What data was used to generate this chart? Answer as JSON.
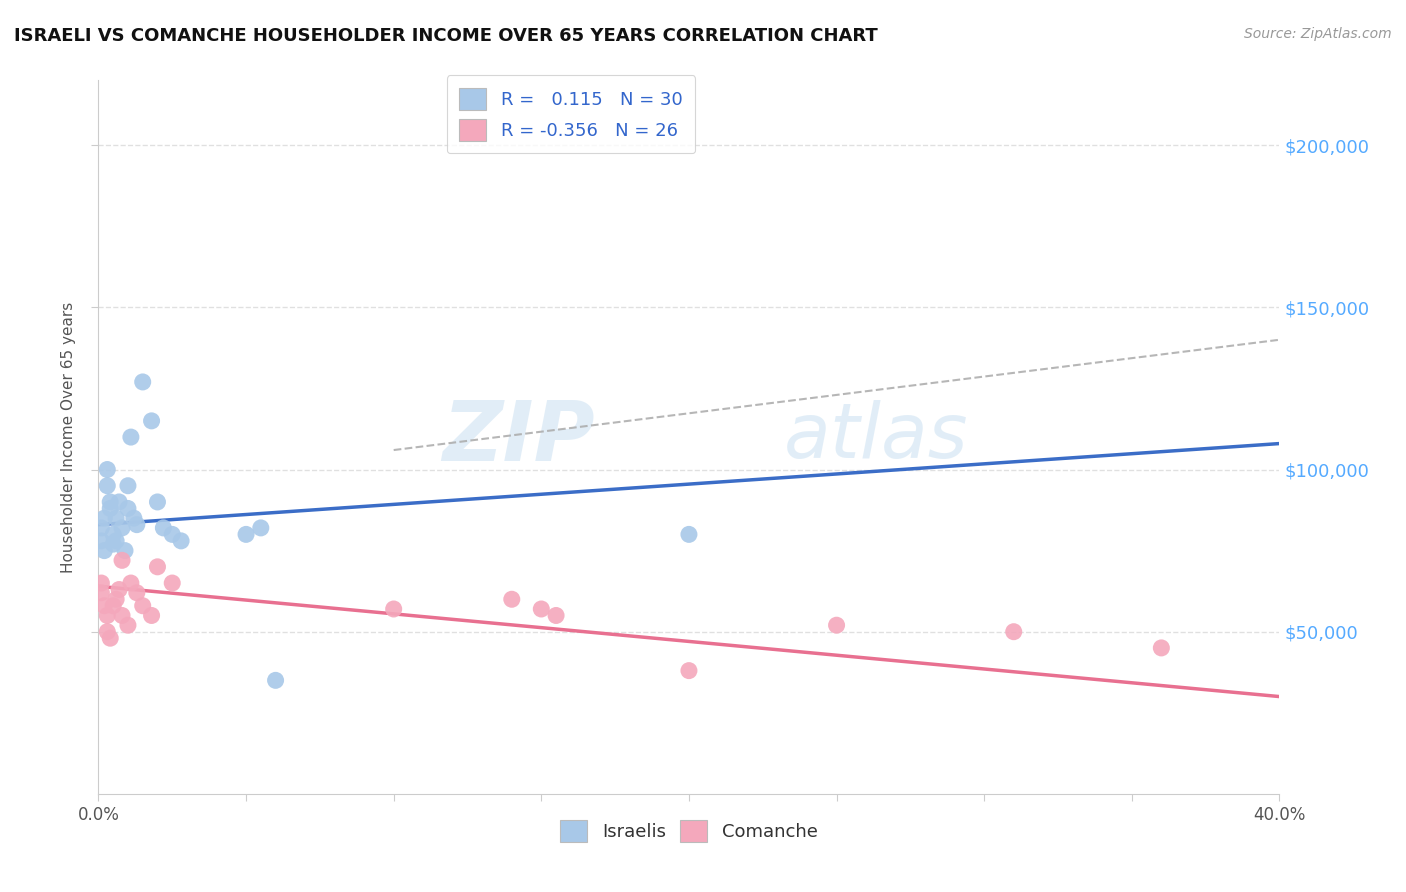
{
  "title": "ISRAELI VS COMANCHE HOUSEHOLDER INCOME OVER 65 YEARS CORRELATION CHART",
  "source": "Source: ZipAtlas.com",
  "ylabel": "Householder Income Over 65 years",
  "xlim": [
    0.0,
    0.4
  ],
  "ylim": [
    0,
    220000
  ],
  "ytick_values": [
    50000,
    100000,
    150000,
    200000
  ],
  "ytick_labels": [
    "$50,000",
    "$100,000",
    "$150,000",
    "$200,000"
  ],
  "watermark_line1": "ZIP",
  "watermark_line2": "atlas",
  "israeli_color": "#a8c8e8",
  "comanche_color": "#f4a8bc",
  "israeli_R": 0.115,
  "israeli_N": 30,
  "comanche_R": -0.356,
  "comanche_N": 26,
  "israeli_scatter_x": [
    0.001,
    0.001,
    0.002,
    0.002,
    0.003,
    0.003,
    0.004,
    0.004,
    0.005,
    0.005,
    0.006,
    0.006,
    0.007,
    0.008,
    0.009,
    0.01,
    0.01,
    0.011,
    0.012,
    0.013,
    0.015,
    0.018,
    0.02,
    0.022,
    0.025,
    0.028,
    0.05,
    0.055,
    0.06,
    0.2
  ],
  "israeli_scatter_y": [
    78000,
    82000,
    75000,
    85000,
    100000,
    95000,
    90000,
    88000,
    80000,
    77000,
    85000,
    78000,
    90000,
    82000,
    75000,
    95000,
    88000,
    110000,
    85000,
    83000,
    127000,
    115000,
    90000,
    82000,
    80000,
    78000,
    80000,
    82000,
    35000,
    80000
  ],
  "comanche_scatter_x": [
    0.001,
    0.001,
    0.002,
    0.003,
    0.003,
    0.004,
    0.005,
    0.006,
    0.007,
    0.008,
    0.008,
    0.01,
    0.011,
    0.013,
    0.015,
    0.018,
    0.02,
    0.025,
    0.1,
    0.14,
    0.15,
    0.155,
    0.2,
    0.25,
    0.31,
    0.36
  ],
  "comanche_scatter_y": [
    65000,
    62000,
    58000,
    55000,
    50000,
    48000,
    58000,
    60000,
    63000,
    72000,
    55000,
    52000,
    65000,
    62000,
    58000,
    55000,
    70000,
    65000,
    57000,
    60000,
    57000,
    55000,
    38000,
    52000,
    50000,
    45000
  ],
  "israeli_line_x": [
    0.0,
    0.4
  ],
  "israeli_line_y": [
    83000,
    108000
  ],
  "comanche_line_x": [
    0.0,
    0.4
  ],
  "comanche_line_y": [
    64000,
    30000
  ],
  "dashed_line_x": [
    0.1,
    0.4
  ],
  "dashed_line_y": [
    106000,
    140000
  ],
  "background_color": "#ffffff",
  "grid_color": "#dddddd",
  "title_color": "#111111",
  "right_ytick_color": "#55aaff",
  "legend_color": "#3366cc"
}
